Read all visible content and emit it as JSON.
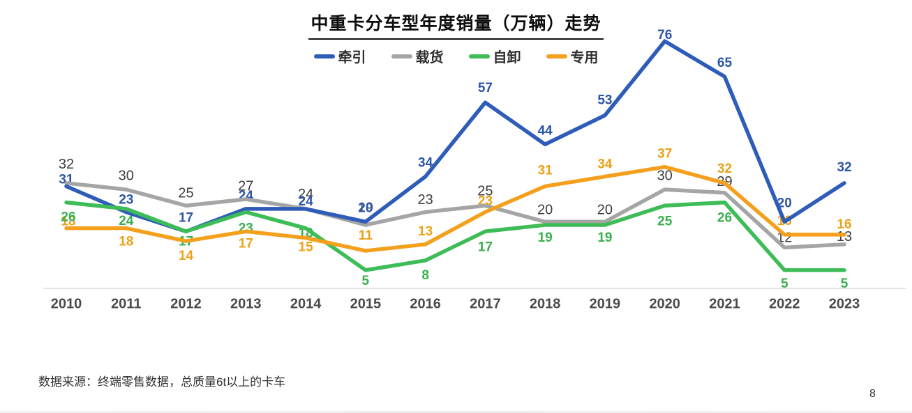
{
  "title": "中重卡分车型年度销量（万辆）走势",
  "footer": {
    "source_note": "数据来源：终端零售数据，总质量6t以上的卡车"
  },
  "page_number": "8",
  "chart_data": {
    "type": "line",
    "title": "中重卡分车型年度销量（万辆）走势",
    "xlabel": "",
    "ylabel": "万辆",
    "ylim": [
      0,
      80
    ],
    "grid": false,
    "legend_position": "top",
    "categories": [
      "2010",
      "2011",
      "2012",
      "2013",
      "2014",
      "2015",
      "2016",
      "2017",
      "2018",
      "2019",
      "2020",
      "2021",
      "2022",
      "2023"
    ],
    "series": [
      {
        "name": "牵引",
        "color": "#2E5CB8",
        "label_color": "#2B55A8",
        "values": [
          31,
          23,
          17,
          24,
          24,
          20,
          34,
          57,
          44,
          53,
          76,
          65,
          20,
          32
        ]
      },
      {
        "name": "载货",
        "color": "#A5A5A5",
        "label_color": "#3D3D3D",
        "values": [
          32,
          30,
          25,
          27,
          24,
          19,
          23,
          25,
          20,
          20,
          30,
          29,
          12,
          13
        ]
      },
      {
        "name": "自卸",
        "color": "#3EBC57",
        "label_color": "#38B04E",
        "values": [
          26,
          24,
          17,
          23,
          18,
          5,
          8,
          17,
          19,
          19,
          25,
          26,
          5,
          5
        ]
      },
      {
        "name": "专用",
        "color": "#F4A01D",
        "label_color": "#EDA117",
        "values": [
          18,
          18,
          14,
          17,
          15,
          11,
          13,
          23,
          31,
          34,
          37,
          32,
          16,
          16
        ]
      }
    ],
    "axis_line_color": "#dcdcdc",
    "tick_label_color": "#4a4a4a"
  }
}
